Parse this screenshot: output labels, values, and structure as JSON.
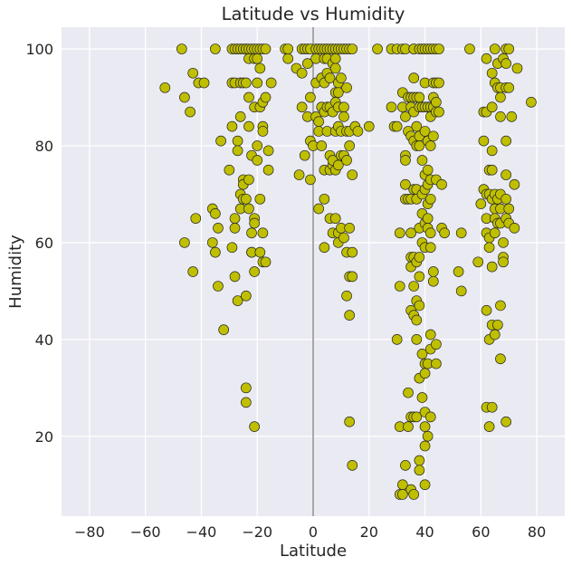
{
  "chart_data": {
    "type": "scatter",
    "title": "Latitude vs Humidity",
    "xlabel": "Latitude",
    "ylabel": "Humidity",
    "xlim": [
      -90,
      90
    ],
    "ylim": [
      3.5,
      104.5
    ],
    "xticks": [
      -80,
      -60,
      -40,
      -20,
      0,
      20,
      40,
      60,
      80
    ],
    "yticks": [
      20,
      40,
      60,
      80,
      100
    ],
    "grid": true,
    "vertical_reference_line": 0,
    "point_color": "#bfbf00",
    "edge_color": "#262626",
    "background_color": "#eaeaf2",
    "points": [
      [
        -53,
        92
      ],
      [
        -47,
        100
      ],
      [
        -46,
        90
      ],
      [
        -46,
        60
      ],
      [
        -44,
        87
      ],
      [
        -43,
        95
      ],
      [
        -43,
        54
      ],
      [
        -42,
        65
      ],
      [
        -41,
        93
      ],
      [
        -39,
        93
      ],
      [
        -36,
        60
      ],
      [
        -36,
        67
      ],
      [
        -35,
        66
      ],
      [
        -35,
        100
      ],
      [
        -35,
        58
      ],
      [
        -34,
        63
      ],
      [
        -34,
        51
      ],
      [
        -33,
        81
      ],
      [
        -32,
        42
      ],
      [
        -30,
        75
      ],
      [
        -29,
        100
      ],
      [
        -29,
        93
      ],
      [
        -29,
        84
      ],
      [
        -29,
        59
      ],
      [
        -28,
        100
      ],
      [
        -28,
        93
      ],
      [
        -28,
        53
      ],
      [
        -28,
        65
      ],
      [
        -28,
        63
      ],
      [
        -27,
        81
      ],
      [
        -27,
        79
      ],
      [
        -27,
        100
      ],
      [
        -27,
        48
      ],
      [
        -26,
        93
      ],
      [
        -26,
        100
      ],
      [
        -26,
        86
      ],
      [
        -26,
        70
      ],
      [
        -26,
        67
      ],
      [
        -25,
        100
      ],
      [
        -25,
        93
      ],
      [
        -25,
        73
      ],
      [
        -25,
        72
      ],
      [
        -25,
        69
      ],
      [
        -24,
        100
      ],
      [
        -24,
        100
      ],
      [
        -24,
        93
      ],
      [
        -24,
        69
      ],
      [
        -24,
        49
      ],
      [
        -24,
        30
      ],
      [
        -24,
        27
      ],
      [
        -23,
        100
      ],
      [
        -23,
        98
      ],
      [
        -23,
        90
      ],
      [
        -23,
        84
      ],
      [
        -23,
        73
      ],
      [
        -23,
        67
      ],
      [
        -22,
        100
      ],
      [
        -22,
        78
      ],
      [
        -22,
        62
      ],
      [
        -22,
        58
      ],
      [
        -22,
        58
      ],
      [
        -21,
        100
      ],
      [
        -21,
        98
      ],
      [
        -21,
        88
      ],
      [
        -21,
        65
      ],
      [
        -21,
        64
      ],
      [
        -21,
        54
      ],
      [
        -21,
        22
      ],
      [
        -20,
        100
      ],
      [
        -20,
        98
      ],
      [
        -20,
        93
      ],
      [
        -20,
        80
      ],
      [
        -20,
        77
      ],
      [
        -19,
        100
      ],
      [
        -19,
        96
      ],
      [
        -19,
        88
      ],
      [
        -19,
        69
      ],
      [
        -19,
        58
      ],
      [
        -18,
        100
      ],
      [
        -18,
        89
      ],
      [
        -18,
        84
      ],
      [
        -18,
        83
      ],
      [
        -18,
        62
      ],
      [
        -18,
        56
      ],
      [
        -17,
        100
      ],
      [
        -17,
        90
      ],
      [
        -17,
        56
      ],
      [
        -16,
        79
      ],
      [
        -16,
        75
      ],
      [
        -15,
        93
      ],
      [
        -10,
        100
      ],
      [
        -9,
        100
      ],
      [
        -9,
        98
      ],
      [
        -6,
        96
      ],
      [
        -5,
        74
      ],
      [
        -4,
        100
      ],
      [
        -4,
        95
      ],
      [
        -4,
        88
      ],
      [
        -3,
        78
      ],
      [
        -3,
        100
      ],
      [
        -2,
        100
      ],
      [
        -2,
        97
      ],
      [
        -2,
        86
      ],
      [
        -1,
        100
      ],
      [
        -1,
        90
      ],
      [
        -1,
        81
      ],
      [
        -1,
        73
      ],
      [
        0,
        80
      ],
      [
        1,
        100
      ],
      [
        1,
        98
      ],
      [
        1,
        93
      ],
      [
        1,
        86
      ],
      [
        2,
        100
      ],
      [
        2,
        85
      ],
      [
        2,
        83
      ],
      [
        2,
        67
      ],
      [
        3,
        100
      ],
      [
        3,
        94
      ],
      [
        3,
        88
      ],
      [
        3,
        80
      ],
      [
        4,
        100
      ],
      [
        4,
        98
      ],
      [
        4,
        93
      ],
      [
        4,
        87
      ],
      [
        4,
        75
      ],
      [
        4,
        59
      ],
      [
        4,
        69
      ],
      [
        5,
        100
      ],
      [
        5,
        98
      ],
      [
        5,
        95
      ],
      [
        5,
        88
      ],
      [
        5,
        83
      ],
      [
        6,
        100
      ],
      [
        6,
        94
      ],
      [
        6,
        88
      ],
      [
        6,
        78
      ],
      [
        6,
        75
      ],
      [
        6,
        65
      ],
      [
        7,
        100
      ],
      [
        7,
        97
      ],
      [
        7,
        87
      ],
      [
        7,
        76
      ],
      [
        7,
        77
      ],
      [
        7,
        62
      ],
      [
        8,
        100
      ],
      [
        8,
        98
      ],
      [
        8,
        96
      ],
      [
        8,
        91
      ],
      [
        8,
        89
      ],
      [
        8,
        83
      ],
      [
        8,
        75
      ],
      [
        8,
        65
      ],
      [
        9,
        100
      ],
      [
        9,
        93
      ],
      [
        9,
        91
      ],
      [
        9,
        88
      ],
      [
        9,
        84
      ],
      [
        9,
        76
      ],
      [
        9,
        62
      ],
      [
        9,
        60
      ],
      [
        10,
        100
      ],
      [
        10,
        94
      ],
      [
        10,
        83
      ],
      [
        10,
        78
      ],
      [
        10,
        63
      ],
      [
        11,
        100
      ],
      [
        11,
        88
      ],
      [
        11,
        86
      ],
      [
        11,
        78
      ],
      [
        11,
        61
      ],
      [
        12,
        100
      ],
      [
        12,
        92
      ],
      [
        12,
        83
      ],
      [
        12,
        77
      ],
      [
        12,
        58
      ],
      [
        12,
        49
      ],
      [
        13,
        100
      ],
      [
        13,
        83
      ],
      [
        13,
        80
      ],
      [
        13,
        63
      ],
      [
        13,
        53
      ],
      [
        13,
        45
      ],
      [
        13,
        23
      ],
      [
        14,
        100
      ],
      [
        14,
        74
      ],
      [
        14,
        58
      ],
      [
        14,
        53
      ],
      [
        14,
        14
      ],
      [
        15,
        84
      ],
      [
        16,
        83
      ],
      [
        20,
        84
      ],
      [
        23,
        100
      ],
      [
        28,
        100
      ],
      [
        28,
        88
      ],
      [
        29,
        84
      ],
      [
        30,
        100
      ],
      [
        30,
        84
      ],
      [
        30,
        40
      ],
      [
        31,
        62
      ],
      [
        31,
        51
      ],
      [
        31,
        22
      ],
      [
        31,
        8
      ],
      [
        32,
        100
      ],
      [
        32,
        91
      ],
      [
        32,
        88
      ],
      [
        32,
        10
      ],
      [
        32,
        8
      ],
      [
        33,
        100
      ],
      [
        33,
        86
      ],
      [
        33,
        78
      ],
      [
        33,
        77
      ],
      [
        33,
        72
      ],
      [
        33,
        69
      ],
      [
        33,
        14
      ],
      [
        34,
        90
      ],
      [
        34,
        83
      ],
      [
        34,
        69
      ],
      [
        34,
        29
      ],
      [
        34,
        22
      ],
      [
        35,
        90
      ],
      [
        35,
        88
      ],
      [
        35,
        82
      ],
      [
        35,
        69
      ],
      [
        35,
        62
      ],
      [
        35,
        57
      ],
      [
        35,
        55
      ],
      [
        35,
        46
      ],
      [
        35,
        24
      ],
      [
        35,
        9
      ],
      [
        36,
        100
      ],
      [
        36,
        100
      ],
      [
        36,
        94
      ],
      [
        36,
        90
      ],
      [
        36,
        87
      ],
      [
        36,
        81
      ],
      [
        36,
        71
      ],
      [
        36,
        57
      ],
      [
        36,
        51
      ],
      [
        36,
        45
      ],
      [
        36,
        24
      ],
      [
        36,
        8
      ],
      [
        37,
        90
      ],
      [
        37,
        84
      ],
      [
        37,
        80
      ],
      [
        37,
        71
      ],
      [
        37,
        69
      ],
      [
        37,
        56
      ],
      [
        37,
        48
      ],
      [
        37,
        44
      ],
      [
        37,
        40
      ],
      [
        37,
        24
      ],
      [
        38,
        100
      ],
      [
        38,
        90
      ],
      [
        38,
        88
      ],
      [
        38,
        82
      ],
      [
        38,
        80
      ],
      [
        38,
        63
      ],
      [
        38,
        57
      ],
      [
        38,
        53
      ],
      [
        38,
        47
      ],
      [
        38,
        32
      ],
      [
        38,
        15
      ],
      [
        38,
        13
      ],
      [
        39,
        100
      ],
      [
        39,
        88
      ],
      [
        39,
        77
      ],
      [
        39,
        70
      ],
      [
        39,
        66
      ],
      [
        39,
        60
      ],
      [
        39,
        37
      ],
      [
        39,
        28
      ],
      [
        40,
        100
      ],
      [
        40,
        93
      ],
      [
        40,
        88
      ],
      [
        40,
        83
      ],
      [
        40,
        74
      ],
      [
        40,
        71
      ],
      [
        40,
        64
      ],
      [
        40,
        59
      ],
      [
        40,
        35
      ],
      [
        40,
        33
      ],
      [
        40,
        25
      ],
      [
        40,
        22
      ],
      [
        40,
        18
      ],
      [
        40,
        10
      ],
      [
        41,
        100
      ],
      [
        41,
        88
      ],
      [
        41,
        81
      ],
      [
        41,
        75
      ],
      [
        41,
        72
      ],
      [
        41,
        68
      ],
      [
        41,
        65
      ],
      [
        41,
        63
      ],
      [
        41,
        35
      ],
      [
        41,
        20
      ],
      [
        42,
        100
      ],
      [
        42,
        88
      ],
      [
        42,
        86
      ],
      [
        42,
        80
      ],
      [
        42,
        73
      ],
      [
        42,
        69
      ],
      [
        42,
        62
      ],
      [
        42,
        59
      ],
      [
        42,
        41
      ],
      [
        42,
        38
      ],
      [
        42,
        24
      ],
      [
        43,
        100
      ],
      [
        43,
        93
      ],
      [
        43,
        90
      ],
      [
        43,
        88
      ],
      [
        43,
        82
      ],
      [
        43,
        54
      ],
      [
        43,
        52
      ],
      [
        44,
        100
      ],
      [
        44,
        93
      ],
      [
        44,
        89
      ],
      [
        44,
        87
      ],
      [
        44,
        73
      ],
      [
        44,
        39
      ],
      [
        44,
        35
      ],
      [
        45,
        100
      ],
      [
        45,
        93
      ],
      [
        45,
        87
      ],
      [
        46,
        72
      ],
      [
        46,
        63
      ],
      [
        47,
        62
      ],
      [
        52,
        54
      ],
      [
        53,
        62
      ],
      [
        53,
        50
      ],
      [
        56,
        100
      ],
      [
        59,
        56
      ],
      [
        60,
        68
      ],
      [
        61,
        87
      ],
      [
        61,
        81
      ],
      [
        61,
        71
      ],
      [
        62,
        98
      ],
      [
        62,
        87
      ],
      [
        62,
        70
      ],
      [
        62,
        65
      ],
      [
        62,
        62
      ],
      [
        62,
        46
      ],
      [
        62,
        26
      ],
      [
        63,
        75
      ],
      [
        63,
        70
      ],
      [
        63,
        61
      ],
      [
        63,
        59
      ],
      [
        63,
        40
      ],
      [
        63,
        22
      ],
      [
        64,
        95
      ],
      [
        64,
        88
      ],
      [
        64,
        79
      ],
      [
        64,
        75
      ],
      [
        64,
        69
      ],
      [
        64,
        55
      ],
      [
        64,
        43
      ],
      [
        64,
        26
      ],
      [
        65,
        100
      ],
      [
        65,
        93
      ],
      [
        65,
        70
      ],
      [
        65,
        67
      ],
      [
        65,
        65
      ],
      [
        65,
        62
      ],
      [
        65,
        41
      ],
      [
        66,
        97
      ],
      [
        66,
        92
      ],
      [
        66,
        69
      ],
      [
        66,
        64
      ],
      [
        66,
        43
      ],
      [
        67,
        92
      ],
      [
        67,
        90
      ],
      [
        67,
        86
      ],
      [
        67,
        70
      ],
      [
        67,
        67
      ],
      [
        67,
        64
      ],
      [
        67,
        47
      ],
      [
        67,
        36
      ],
      [
        68,
        98
      ],
      [
        68,
        60
      ],
      [
        68,
        57
      ],
      [
        68,
        56
      ],
      [
        69,
        100
      ],
      [
        69,
        97
      ],
      [
        69,
        92
      ],
      [
        69,
        81
      ],
      [
        69,
        74
      ],
      [
        69,
        69
      ],
      [
        69,
        65
      ],
      [
        69,
        23
      ],
      [
        70,
        100
      ],
      [
        70,
        92
      ],
      [
        70,
        67
      ],
      [
        70,
        64
      ],
      [
        71,
        86
      ],
      [
        72,
        72
      ],
      [
        72,
        63
      ],
      [
        73,
        96
      ],
      [
        78,
        89
      ]
    ]
  }
}
